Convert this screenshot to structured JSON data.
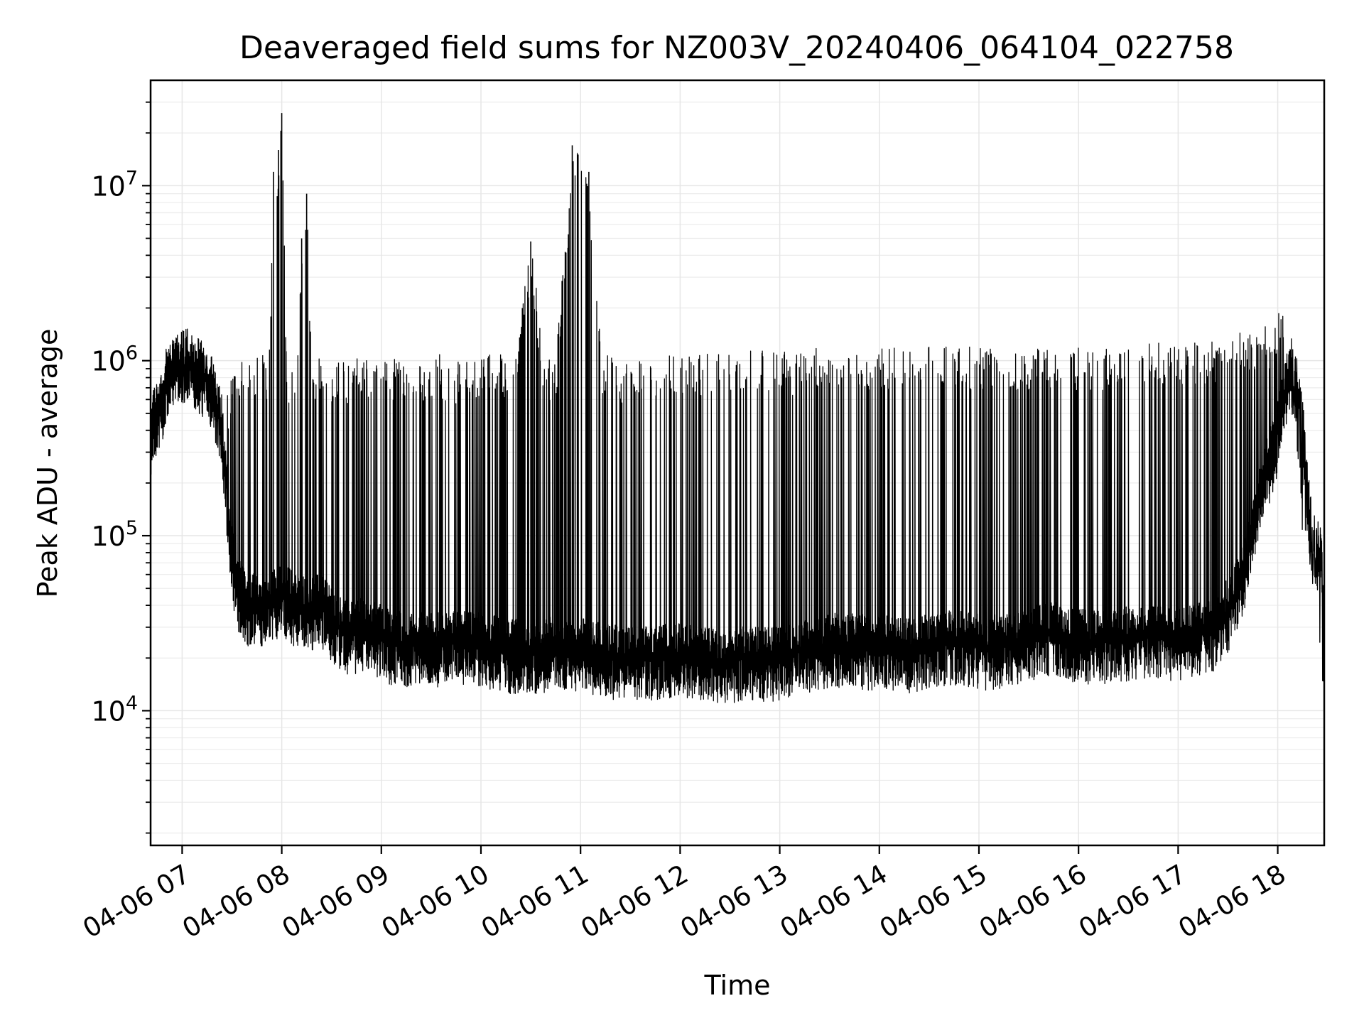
{
  "chart_data": {
    "type": "line",
    "title": "Deaveraged field sums for NZ003V_20240406_064104_022758",
    "xlabel": "Time",
    "ylabel": "Peak ADU - average",
    "yscale": "log",
    "ylim": [
      1700,
      40000000
    ],
    "xlim": [
      "04-06 06:41",
      "04-06 18:28"
    ],
    "grid": true,
    "line_color": "#000000",
    "x_tick_labels": [
      "04-06 07",
      "04-06 08",
      "04-06 09",
      "04-06 10",
      "04-06 11",
      "04-06 12",
      "04-06 13",
      "04-06 14",
      "04-06 15",
      "04-06 16",
      "04-06 17",
      "04-06 18"
    ],
    "x_ticks": [
      "04-06 07:00",
      "04-06 08:00",
      "04-06 09:00",
      "04-06 10:00",
      "04-06 11:00",
      "04-06 12:00",
      "04-06 13:00",
      "04-06 14:00",
      "04-06 15:00",
      "04-06 16:00",
      "04-06 17:00",
      "04-06 18:00"
    ],
    "y_ticks": [
      10000,
      100000,
      1000000,
      10000000
    ],
    "y_tick_labels": [
      {
        "base": "10",
        "exp": "4"
      },
      {
        "base": "10",
        "exp": "5"
      },
      {
        "base": "10",
        "exp": "6"
      },
      {
        "base": "10",
        "exp": "7"
      }
    ],
    "series": [
      {
        "x": [
          "04-06 06:41",
          "04-06 06:42",
          "04-06 06:45",
          "04-06 06:48",
          "04-06 06:50",
          "04-06 06:52",
          "04-06 06:55",
          "04-06 06:58",
          "04-06 07:00",
          "04-06 07:03",
          "04-06 07:06",
          "04-06 07:09",
          "04-06 07:12",
          "04-06 07:15",
          "04-06 07:18",
          "04-06 07:20",
          "04-06 07:23",
          "04-06 07:26",
          "04-06 07:28",
          "04-06 07:30",
          "04-06 07:32",
          "04-06 07:34",
          "04-06 07:36",
          "04-06 07:38",
          "04-06 07:40",
          "04-06 07:42",
          "04-06 07:45",
          "04-06 07:48",
          "04-06 07:50",
          "04-06 07:52",
          "04-06 07:55",
          "04-06 07:58",
          "04-06 08:00",
          "04-06 08:03",
          "04-06 08:06",
          "04-06 08:09",
          "04-06 08:12",
          "04-06 08:15",
          "04-06 08:18",
          "04-06 08:21",
          "04-06 08:23",
          "04-06 08:26",
          "04-06 08:29",
          "04-06 08:31",
          "04-06 08:33",
          "04-06 08:35",
          "04-06 08:37",
          "04-06 08:40",
          "04-06 08:43",
          "04-06 08:46",
          "04-06 08:49",
          "04-06 08:52",
          "04-06 08:55",
          "04-06 08:57",
          "04-06 09:00",
          "04-06 09:05",
          "04-06 09:10",
          "04-06 09:15",
          "04-06 09:20",
          "04-06 09:25",
          "04-06 09:30",
          "04-06 09:35",
          "04-06 09:40",
          "04-06 09:45",
          "04-06 09:50",
          "04-06 09:55",
          "04-06 10:00",
          "04-06 10:10",
          "04-06 10:20",
          "04-06 10:30",
          "04-06 10:38",
          "04-06 10:45",
          "04-06 10:55",
          "04-06 11:05",
          "04-06 11:13",
          "04-06 11:16",
          "04-06 11:25",
          "04-06 11:35",
          "04-06 11:45",
          "04-06 11:55",
          "04-06 12:05",
          "04-06 12:15",
          "04-06 12:25",
          "04-06 12:35",
          "04-06 12:45",
          "04-06 12:55",
          "04-06 13:05",
          "04-06 13:15",
          "04-06 13:25",
          "04-06 13:35",
          "04-06 13:45",
          "04-06 13:55",
          "04-06 14:05",
          "04-06 14:15",
          "04-06 14:25",
          "04-06 14:35",
          "04-06 14:45",
          "04-06 14:55",
          "04-06 15:05",
          "04-06 15:15",
          "04-06 15:25",
          "04-06 15:35",
          "04-06 15:45",
          "04-06 15:55",
          "04-06 16:05",
          "04-06 16:15",
          "04-06 16:25",
          "04-06 16:35",
          "04-06 16:45",
          "04-06 16:55",
          "04-06 17:05",
          "04-06 17:15",
          "04-06 17:22",
          "04-06 17:30",
          "04-06 17:38",
          "04-06 17:45",
          "04-06 17:52",
          "04-06 17:58",
          "04-06 18:02",
          "04-06 18:05",
          "04-06 18:08",
          "04-06 18:11",
          "04-06 18:14",
          "04-06 18:17",
          "04-06 18:20",
          "04-06 18:23",
          "04-06 18:26",
          "04-06 18:28"
        ],
        "y": [
          380000,
          450000,
          520000,
          600000,
          720000,
          820000,
          900000,
          950000,
          1000000,
          1050000,
          1000000,
          900000,
          850000,
          780000,
          700000,
          600000,
          450000,
          250000,
          120000,
          80000,
          60000,
          50000,
          45000,
          42000,
          40000,
          40000,
          42000,
          40000,
          38000,
          40000,
          42000,
          45000,
          45000,
          45000,
          42000,
          40000,
          40000,
          40000,
          38000,
          40000,
          40000,
          38000,
          35000,
          32000,
          30000,
          30000,
          30000,
          28000,
          28000,
          30000,
          30000,
          28000,
          28000,
          27000,
          27000,
          25000,
          25000,
          24000,
          24000,
          25000,
          24000,
          24000,
          25000,
          26000,
          25000,
          24000,
          24000,
          23000,
          22000,
          22000,
          22000,
          24000,
          23000,
          22000,
          21000,
          21000,
          20000,
          20000,
          20000,
          21000,
          21000,
          20000,
          19000,
          20000,
          20000,
          20000,
          21000,
          22000,
          23000,
          24000,
          24000,
          23000,
          23000,
          22000,
          23000,
          24000,
          25000,
          24000,
          23000,
          24000,
          25000,
          27000,
          28000,
          26000,
          25000,
          25000,
          26000,
          26000,
          27000,
          26000,
          27000,
          28000,
          30000,
          38000,
          55000,
          110000,
          220000,
          330000,
          500000,
          700000,
          900000,
          750000,
          600000,
          220000,
          110000,
          80000,
          85000,
          20000
        ],
        "upper": [
          450000,
          700000,
          800000,
          950000,
          1200000,
          1400000,
          1300000,
          1500000,
          1200000,
          1300000,
          1400000,
          1300000,
          1200000,
          1100000,
          1000000,
          900000,
          700000,
          600000,
          700000,
          900000,
          1000000,
          1100000,
          1100000,
          1100000,
          1100000,
          1000000,
          1100000,
          1100000,
          1000000,
          1000000,
          12000000,
          16000000,
          26000000,
          1000000,
          900000,
          1000000,
          5000000,
          9000000,
          1000000,
          1000000,
          1100000,
          900000,
          800000,
          900000,
          1000000,
          1100000,
          1000000,
          1000000,
          900000,
          1100000,
          1000000,
          1100000,
          1000000,
          1100000,
          1000000,
          1000000,
          1100000,
          1000000,
          1100000,
          1000000,
          1000000,
          1100000,
          1000000,
          1000000,
          1100000,
          1000000,
          1100000,
          1100000,
          1000000,
          4800000,
          1100000,
          1000000,
          17000000,
          12000000,
          1100000,
          1100000,
          1000000,
          1100000,
          1100000,
          1100000,
          1100000,
          1100000,
          1200000,
          1100000,
          1200000,
          1200000,
          1100000,
          1200000,
          1200000,
          1200000,
          1100000,
          1200000,
          1200000,
          1200000,
          1200000,
          1200000,
          1200000,
          1200000,
          1200000,
          1200000,
          1200000,
          1200000,
          1200000,
          1200000,
          1200000,
          1200000,
          1200000,
          1200000,
          1300000,
          1200000,
          1300000,
          1300000,
          1300000,
          1400000,
          1500000,
          1500000,
          1600000,
          1600000,
          2500000,
          1300000,
          1000000,
          700000,
          220000,
          110000,
          95000,
          90000,
          30000,
          20000
        ]
      }
    ]
  }
}
